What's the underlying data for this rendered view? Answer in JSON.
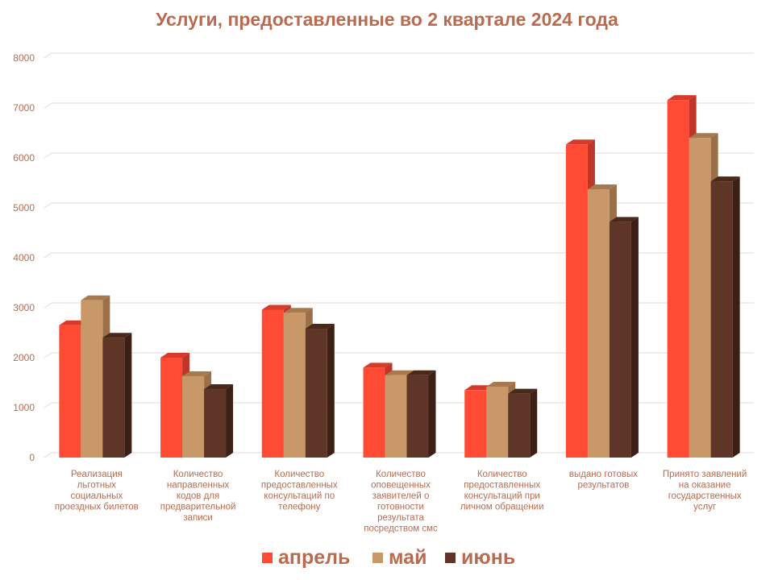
{
  "chart_data": {
    "type": "bar",
    "title": "Услуги, предоставленные во 2 квартале 2024 года",
    "xlabel": "",
    "ylabel": "",
    "ylim": [
      0,
      8000
    ],
    "yticks": [
      0,
      1000,
      2000,
      3000,
      4000,
      5000,
      6000,
      7000,
      8000
    ],
    "grid": true,
    "legend_position": "bottom",
    "categories": [
      [
        "Реализация",
        "льготных",
        "социальных",
        "проездных билетов"
      ],
      [
        "Количество",
        "направленных",
        "кодов для",
        "предварительной",
        "записи"
      ],
      [
        "Количество",
        "предоставленных",
        "консультаций   по",
        "телефону"
      ],
      [
        "Количество",
        "оповещенных",
        "заявителей о",
        "готовности",
        "результата",
        "посредством смс"
      ],
      [
        "Количество",
        "предоставленных",
        "консультаций  при",
        "личном обращении"
      ],
      [
        "выдано готовых",
        "результатов"
      ],
      [
        "Принято заявлений",
        "на оказание",
        "государственных",
        "услуг"
      ]
    ],
    "series": [
      {
        "name": "апрель",
        "color": "#ff4b33",
        "side": "#c0352a",
        "top": "#d63a2b",
        "values": [
          2650,
          2000,
          2960,
          1800,
          1350,
          6270,
          7160
        ]
      },
      {
        "name": "май",
        "color": "#c89868",
        "side": "#9a7048",
        "top": "#a8794c",
        "values": [
          3150,
          1630,
          2900,
          1650,
          1420,
          5370,
          6400
        ]
      },
      {
        "name": "июнь",
        "color": "#5e3527",
        "side": "#3d2015",
        "top": "#4a291b",
        "values": [
          2400,
          1370,
          2580,
          1650,
          1280,
          4720,
          5530
        ]
      }
    ],
    "colors": {
      "title": "#b86b4f",
      "axis_text": "#b86b4f",
      "legend_text": "#b86b4f",
      "grid": "#e7d9d9"
    }
  }
}
